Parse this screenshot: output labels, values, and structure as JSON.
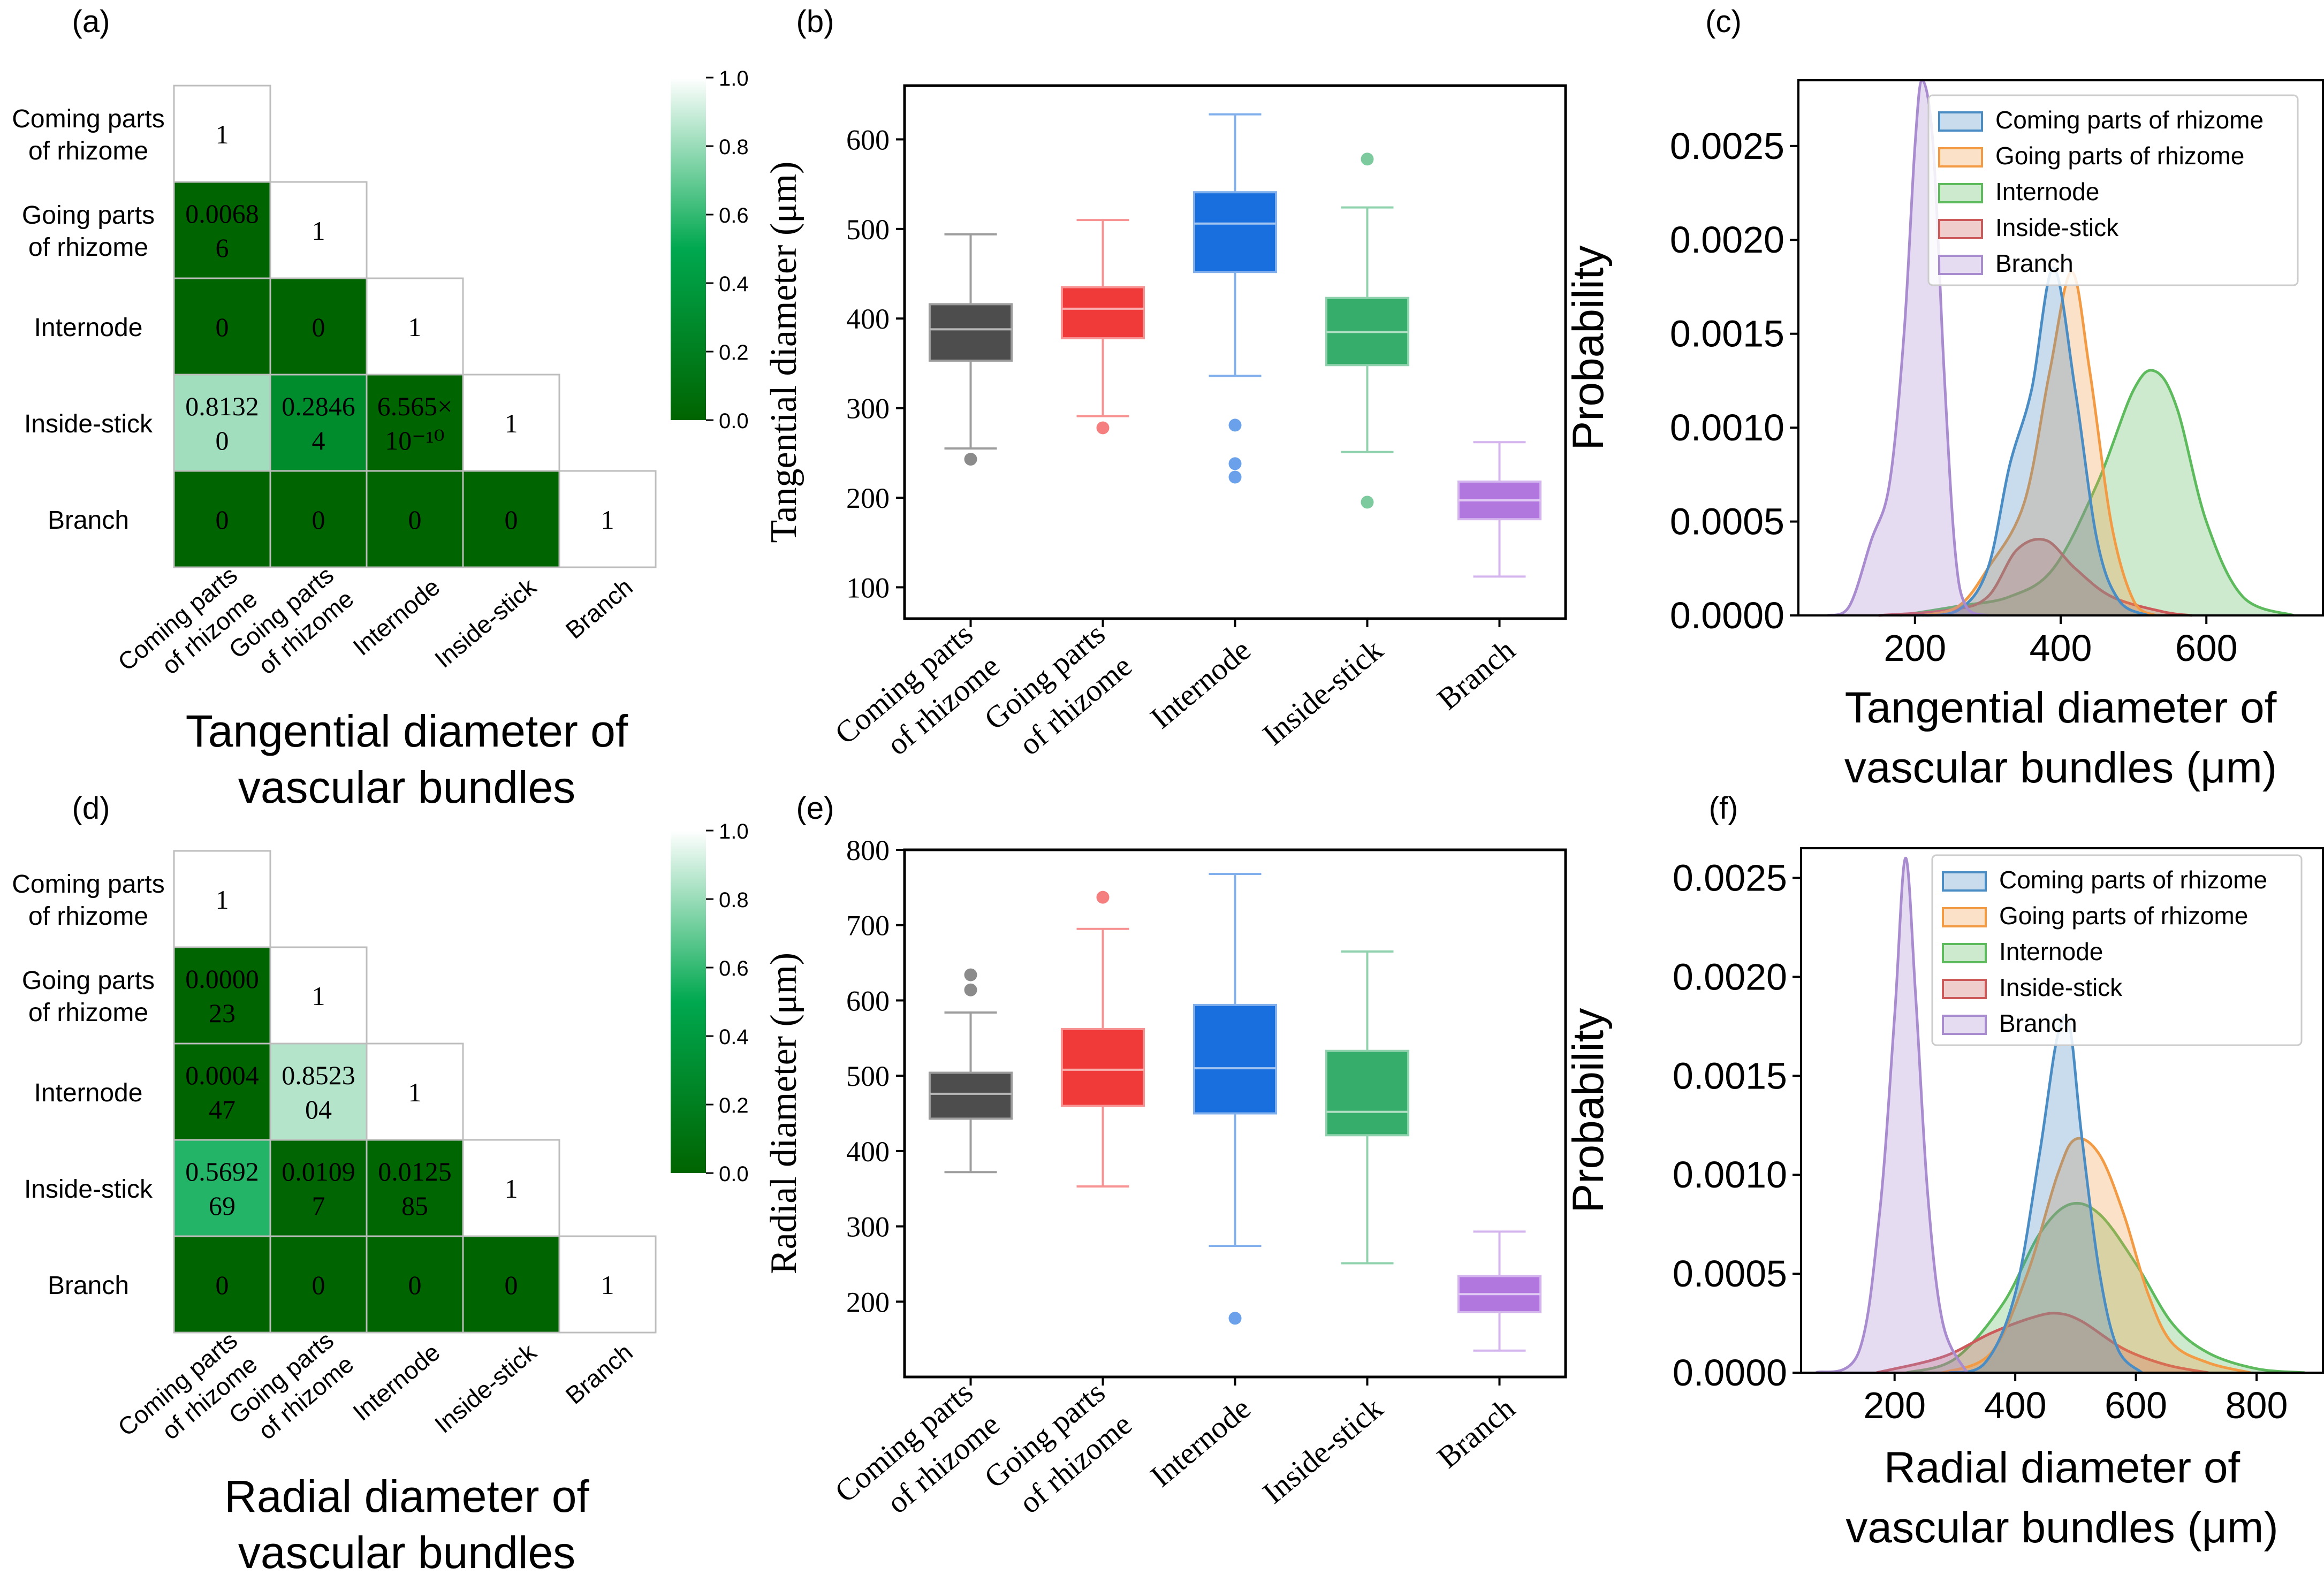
{
  "panels": {
    "a": "(a)",
    "b": "(b)",
    "c": "(c)",
    "d": "(d)",
    "e": "(e)",
    "f": "(f)"
  },
  "groups": [
    "Coming parts of rhizome",
    "Going parts of rhizome",
    "Internode",
    "Inside-stick",
    "Branch"
  ],
  "colors": {
    "groups": [
      "#4d4d4d",
      "#f03a3a",
      "#1a6fdf",
      "#37ad6b",
      "#b177de"
    ],
    "kde": [
      "#4a8cc4",
      "#f29b44",
      "#5dba5d",
      "#cc5a5a",
      "#a98bd0"
    ],
    "heat_low": "#006400",
    "heat_mid": "#00a84f",
    "heat_high": "#ffffff"
  },
  "chart_data": [
    {
      "id": "a",
      "type": "heatmap",
      "title": "Tangential diameter of vascular bundles",
      "title_lines": [
        "Tangential diameter of",
        "vascular bundles"
      ],
      "row_labels": [
        [
          "Coming parts",
          "of rhizome"
        ],
        [
          "Going parts",
          "of rhizome"
        ],
        [
          "Internode"
        ],
        [
          "Inside-stick"
        ],
        [
          "Branch"
        ]
      ],
      "col_labels": [
        [
          "Coming parts",
          "of rhizome"
        ],
        [
          "Going parts",
          "of rhizome"
        ],
        [
          "Internode"
        ],
        [
          "Inside-stick"
        ],
        [
          "Branch"
        ]
      ],
      "values": [
        [
          1
        ],
        [
          0.00686,
          1
        ],
        [
          0,
          0,
          1
        ],
        [
          0.8132,
          0.28464,
          6.565e-10,
          1
        ],
        [
          0,
          0,
          0,
          0,
          1
        ]
      ],
      "labels": [
        [
          [
            "1"
          ]
        ],
        [
          [
            "0.0068",
            "6"
          ],
          [
            "1"
          ]
        ],
        [
          [
            "0"
          ],
          [
            "0"
          ],
          [
            "1"
          ]
        ],
        [
          [
            "0.8132",
            "0"
          ],
          [
            "0.2846",
            "4"
          ],
          [
            "6.565×",
            "10⁻¹⁰"
          ],
          [
            "1"
          ]
        ],
        [
          [
            "0"
          ],
          [
            "0"
          ],
          [
            "0"
          ],
          [
            "0"
          ],
          [
            "1"
          ]
        ]
      ],
      "colorbar": {
        "ticks": [
          "0.0",
          "0.2",
          "0.4",
          "0.6",
          "0.8",
          "1.0"
        ],
        "range": [
          0,
          1
        ]
      }
    },
    {
      "id": "d",
      "type": "heatmap",
      "title": "Radial diameter of vascular bundles",
      "title_lines": [
        "Radial diameter of",
        "vascular bundles"
      ],
      "row_labels": [
        [
          "Coming parts",
          "of rhizome"
        ],
        [
          "Going parts",
          "of rhizome"
        ],
        [
          "Internode"
        ],
        [
          "Inside-stick"
        ],
        [
          "Branch"
        ]
      ],
      "col_labels": [
        [
          "Coming parts",
          "of rhizome"
        ],
        [
          "Going parts",
          "of rhizome"
        ],
        [
          "Internode"
        ],
        [
          "Inside-stick"
        ],
        [
          "Branch"
        ]
      ],
      "values": [
        [
          1
        ],
        [
          2.3e-05,
          1
        ],
        [
          0.000447,
          0.852304,
          1
        ],
        [
          0.569269,
          0.01097,
          0.012585,
          1
        ],
        [
          0,
          0,
          0,
          0,
          1
        ]
      ],
      "labels": [
        [
          [
            "1"
          ]
        ],
        [
          [
            "0.0000",
            "23"
          ],
          [
            "1"
          ]
        ],
        [
          [
            "0.0004",
            "47"
          ],
          [
            "0.8523",
            "04"
          ],
          [
            "1"
          ]
        ],
        [
          [
            "0.5692",
            "69"
          ],
          [
            "0.0109",
            "7"
          ],
          [
            "0.0125",
            "85"
          ],
          [
            "1"
          ]
        ],
        [
          [
            "0"
          ],
          [
            "0"
          ],
          [
            "0"
          ],
          [
            "0"
          ],
          [
            "1"
          ]
        ]
      ],
      "colorbar": {
        "ticks": [
          "0.0",
          "0.2",
          "0.4",
          "0.6",
          "0.8",
          "1.0"
        ],
        "range": [
          0,
          1
        ]
      }
    },
    {
      "id": "b",
      "type": "box",
      "ylabel": "Tangential diameter (μm)",
      "ylim": [
        65,
        660
      ],
      "yticks": [
        100,
        200,
        300,
        400,
        500,
        600
      ],
      "categories": [
        [
          "Coming parts",
          "of rhizome"
        ],
        [
          "Going parts",
          "of rhizome"
        ],
        [
          "Internode"
        ],
        [
          "Inside-stick"
        ],
        [
          "Branch"
        ]
      ],
      "boxes": [
        {
          "whislo": 255,
          "q1": 353,
          "med": 388,
          "q3": 416,
          "whishi": 494,
          "fliers": [
            243
          ]
        },
        {
          "whislo": 291,
          "q1": 378,
          "med": 411,
          "q3": 435,
          "whishi": 510,
          "fliers": [
            278
          ]
        },
        {
          "whislo": 336,
          "q1": 452,
          "med": 506,
          "q3": 541,
          "whishi": 628,
          "fliers": [
            281,
            238,
            223
          ]
        },
        {
          "whislo": 251,
          "q1": 348,
          "med": 385,
          "q3": 423,
          "whishi": 524,
          "fliers": [
            578,
            195
          ]
        },
        {
          "whislo": 112,
          "q1": 176,
          "med": 197,
          "q3": 218,
          "whishi": 262,
          "fliers": []
        }
      ]
    },
    {
      "id": "e",
      "type": "box",
      "ylabel": "Radial diameter (μm)",
      "ylim": [
        100,
        800
      ],
      "yticks": [
        200,
        300,
        400,
        500,
        600,
        700,
        800
      ],
      "categories": [
        [
          "Coming parts",
          "of rhizome"
        ],
        [
          "Going parts",
          "of rhizome"
        ],
        [
          "Internode"
        ],
        [
          "Inside-stick"
        ],
        [
          "Branch"
        ]
      ],
      "boxes": [
        {
          "whislo": 372,
          "q1": 443,
          "med": 476,
          "q3": 504,
          "whishi": 584,
          "fliers": [
            634,
            614
          ]
        },
        {
          "whislo": 353,
          "q1": 460,
          "med": 508,
          "q3": 562,
          "whishi": 695,
          "fliers": [
            737
          ]
        },
        {
          "whislo": 274,
          "q1": 450,
          "med": 510,
          "q3": 594,
          "whishi": 768,
          "fliers": [
            178
          ]
        },
        {
          "whislo": 251,
          "q1": 421,
          "med": 452,
          "q3": 533,
          "whishi": 665,
          "fliers": []
        },
        {
          "whislo": 135,
          "q1": 186,
          "med": 210,
          "q3": 234,
          "whishi": 293,
          "fliers": []
        }
      ]
    },
    {
      "id": "c",
      "type": "area",
      "xlabel": "Tangential diameter of vascular bundles (μm)",
      "xlabel_lines": [
        "Tangential diameter of",
        "vascular bundles (μm)"
      ],
      "ylabel": "Probability",
      "xlim": [
        40,
        760
      ],
      "ylim": [
        0,
        0.00285
      ],
      "xticks": [
        200,
        400,
        600
      ],
      "yticks": [
        "0.0000",
        "0.0005",
        "0.0010",
        "0.0015",
        "0.0020",
        "0.0025"
      ],
      "legend": "top-right",
      "series": [
        {
          "name": "Coming parts of rhizome",
          "points": [
            [
              200,
              0
            ],
            [
              260,
              3e-05
            ],
            [
              300,
              0.00025
            ],
            [
              330,
              0.0008
            ],
            [
              360,
              0.0012
            ],
            [
              390,
              0.00185
            ],
            [
              420,
              0.0012
            ],
            [
              450,
              0.0004
            ],
            [
              480,
              8e-05
            ],
            [
              520,
              0
            ]
          ]
        },
        {
          "name": "Going parts of rhizome",
          "points": [
            [
              210,
              0
            ],
            [
              260,
              5e-05
            ],
            [
              300,
              0.00025
            ],
            [
              350,
              0.0006
            ],
            [
              385,
              0.0013
            ],
            [
              415,
              0.00183
            ],
            [
              440,
              0.0013
            ],
            [
              470,
              0.00048
            ],
            [
              500,
              8e-05
            ],
            [
              530,
              0
            ]
          ]
        },
        {
          "name": "Internode",
          "points": [
            [
              180,
              0
            ],
            [
              260,
              5e-05
            ],
            [
              330,
              0.0001
            ],
            [
              390,
              0.00025
            ],
            [
              450,
              0.0007
            ],
            [
              500,
              0.0012
            ],
            [
              530,
              0.0013
            ],
            [
              560,
              0.0011
            ],
            [
              600,
              0.0005
            ],
            [
              650,
              0.0001
            ],
            [
              720,
              0
            ]
          ]
        },
        {
          "name": "Inside-stick",
          "points": [
            [
              150,
              0
            ],
            [
              250,
              3e-05
            ],
            [
              300,
              0.0001
            ],
            [
              340,
              0.00035
            ],
            [
              380,
              0.0004
            ],
            [
              420,
              0.00025
            ],
            [
              470,
              0.0001
            ],
            [
              540,
              2e-05
            ],
            [
              580,
              0
            ]
          ]
        },
        {
          "name": "Branch",
          "points": [
            [
              80,
              0
            ],
            [
              110,
              5e-05
            ],
            [
              140,
              0.0004
            ],
            [
              165,
              0.0007
            ],
            [
              185,
              0.0015
            ],
            [
              200,
              0.0025
            ],
            [
              210,
              0.00285
            ],
            [
              225,
              0.0025
            ],
            [
              240,
              0.0013
            ],
            [
              255,
              0.00035
            ],
            [
              270,
              5e-05
            ],
            [
              300,
              0
            ]
          ]
        }
      ]
    },
    {
      "id": "f",
      "type": "area",
      "xlabel": "Radial diameter of vascular bundles (μm)",
      "xlabel_lines": [
        "Radial diameter of",
        "vascular bundles (μm)"
      ],
      "ylabel": "Probability",
      "xlim": [
        45,
        910
      ],
      "ylim": [
        0,
        0.00265
      ],
      "xticks": [
        200,
        400,
        600,
        800
      ],
      "yticks": [
        "0.0000",
        "0.0005",
        "0.0010",
        "0.0015",
        "0.0020",
        "0.0025"
      ],
      "legend": "top-right",
      "series": [
        {
          "name": "Coming parts of rhizome",
          "points": [
            [
              290,
              0
            ],
            [
              350,
              5e-05
            ],
            [
              400,
              0.0004
            ],
            [
              440,
              0.0011
            ],
            [
              470,
              0.0017
            ],
            [
              490,
              0.00175
            ],
            [
              510,
              0.0012
            ],
            [
              540,
              0.0005
            ],
            [
              570,
              0.00012
            ],
            [
              610,
              0
            ]
          ]
        },
        {
          "name": "Going parts of rhizome",
          "points": [
            [
              280,
              0
            ],
            [
              360,
              0.0001
            ],
            [
              420,
              0.0005
            ],
            [
              470,
              0.001
            ],
            [
              500,
              0.00118
            ],
            [
              540,
              0.0011
            ],
            [
              580,
              0.0008
            ],
            [
              620,
              0.0004
            ],
            [
              660,
              0.00015
            ],
            [
              720,
              5e-05
            ],
            [
              790,
              0
            ]
          ]
        },
        {
          "name": "Internode",
          "points": [
            [
              220,
              0
            ],
            [
              300,
              7e-05
            ],
            [
              380,
              0.00035
            ],
            [
              440,
              0.0007
            ],
            [
              490,
              0.00085
            ],
            [
              540,
              0.0008
            ],
            [
              600,
              0.00055
            ],
            [
              660,
              0.00025
            ],
            [
              720,
              0.0001
            ],
            [
              800,
              2e-05
            ],
            [
              880,
              0
            ]
          ]
        },
        {
          "name": "Inside-stick",
          "points": [
            [
              170,
              0
            ],
            [
              280,
              8e-05
            ],
            [
              360,
              0.0002
            ],
            [
              430,
              0.00028
            ],
            [
              470,
              0.0003
            ],
            [
              510,
              0.00026
            ],
            [
              580,
              0.00012
            ],
            [
              650,
              4e-05
            ],
            [
              720,
              0
            ]
          ]
        },
        {
          "name": "Branch",
          "points": [
            [
              70,
              0
            ],
            [
              140,
              0.0001
            ],
            [
              175,
              0.0008
            ],
            [
              200,
              0.0018
            ],
            [
              218,
              0.0026
            ],
            [
              235,
              0.0019
            ],
            [
              255,
              0.0009
            ],
            [
              280,
              0.00025
            ],
            [
              320,
              0
            ]
          ]
        }
      ]
    }
  ]
}
